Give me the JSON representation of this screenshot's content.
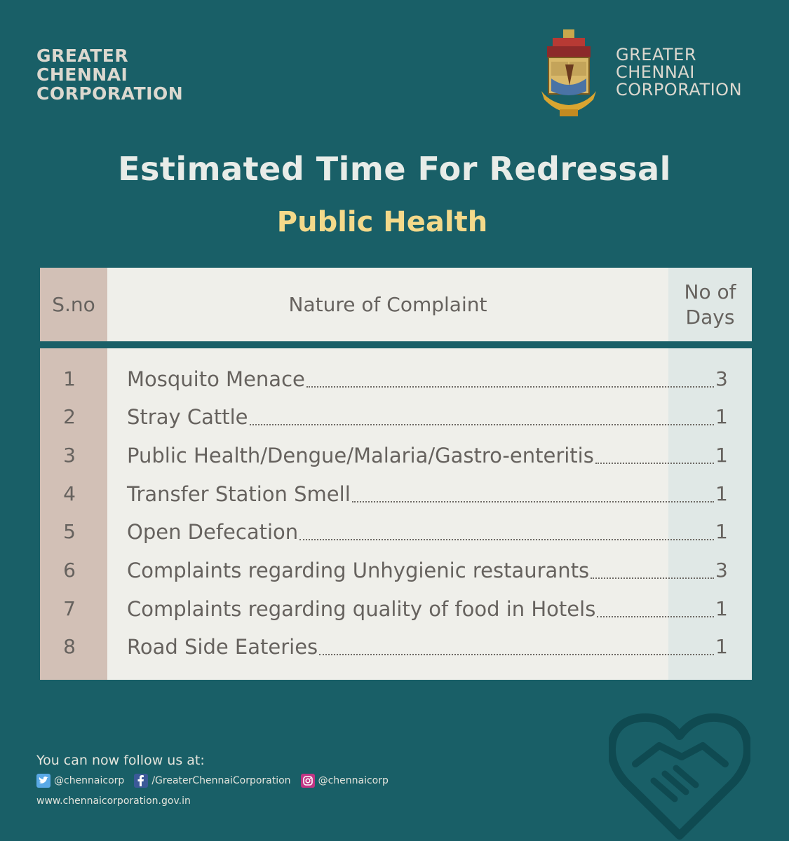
{
  "brand": {
    "lines": [
      "GREATER",
      "CHENNAI",
      "CORPORATION"
    ]
  },
  "title": "Estimated Time For Redressal",
  "subtitle": "Public Health",
  "table": {
    "headers": {
      "sno": "S.no",
      "nature": "Nature of Complaint",
      "days_line1": "No of",
      "days_line2": "Days"
    },
    "rows": [
      {
        "sno": "1",
        "name": "Mosquito Menace",
        "days": "3"
      },
      {
        "sno": "2",
        "name": "Stray Cattle",
        "days": "1"
      },
      {
        "sno": "3",
        "name": "Public Health/Dengue/Malaria/Gastro-enteritis",
        "days": "1"
      },
      {
        "sno": "4",
        "name": "Transfer Station Smell",
        "days": "1"
      },
      {
        "sno": "5",
        "name": "Open Defecation",
        "days": "1"
      },
      {
        "sno": "6",
        "name": "Complaints regarding Unhygienic restaurants",
        "days": "3"
      },
      {
        "sno": "7",
        "name": "Complaints regarding quality of food in Hotels",
        "days": "1"
      },
      {
        "sno": "8",
        "name": "Road Side Eateries",
        "days": "1"
      }
    ]
  },
  "footer": {
    "follow_text": "You can now follow us at:",
    "twitter": "@chennaicorp",
    "facebook": "/GreaterChennaiCorporation",
    "instagram": "@chennaicorp",
    "website": "www.chennaicorporation.gov.in"
  },
  "colors": {
    "background": "#195f67",
    "title": "#e8ece8",
    "subtitle": "#f4d98a",
    "sno_column": "#d2c0b6",
    "days_column": "#e0e8e6",
    "table_body": "#efefea"
  },
  "icons": [
    "twitter-icon",
    "facebook-icon",
    "instagram-icon",
    "emblem-icon",
    "heart-handshake-icon"
  ]
}
